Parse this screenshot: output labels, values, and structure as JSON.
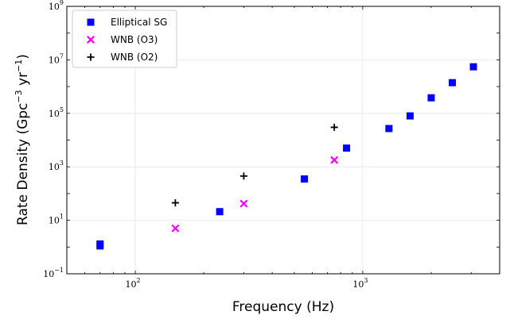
{
  "chart_data": {
    "type": "scatter",
    "title": "",
    "xlabel": "Frequency (Hz)",
    "ylabel": {
      "prefix": "Rate Density (Gpc",
      "exp1": "−3",
      "middle": " yr",
      "exp2": "−1",
      "suffix": ")"
    },
    "xscale": "log",
    "yscale": "log",
    "xlim": [
      50,
      4000
    ],
    "ylim": [
      0.1,
      1000000000
    ],
    "grid": true,
    "legend_position": "top-left",
    "x_ticks": [
      {
        "value": 100,
        "base": "10",
        "exp": "2"
      },
      {
        "value": 1000,
        "base": "10",
        "exp": "3"
      }
    ],
    "y_ticks": [
      {
        "value": 0.1,
        "base": "10",
        "exp": "−1"
      },
      {
        "value": 10,
        "base": "10",
        "exp": "1"
      },
      {
        "value": 1000,
        "base": "10",
        "exp": "3"
      },
      {
        "value": 100000,
        "base": "10",
        "exp": "5"
      },
      {
        "value": 10000000,
        "base": "10",
        "exp": "7"
      },
      {
        "value": 1000000000,
        "base": "10",
        "exp": "9"
      }
    ],
    "series": [
      {
        "name": "Elliptical SG",
        "marker": "square",
        "color": "#0000ff",
        "points": [
          {
            "x": 70,
            "y": 1.1
          },
          {
            "x": 70,
            "y": 1.3
          },
          {
            "x": 235,
            "y": 21
          },
          {
            "x": 554,
            "y": 350
          },
          {
            "x": 849,
            "y": 5000
          },
          {
            "x": 1304,
            "y": 27000
          },
          {
            "x": 1615,
            "y": 80000
          },
          {
            "x": 2000,
            "y": 380000
          },
          {
            "x": 2477,
            "y": 1400000
          },
          {
            "x": 3067,
            "y": 5500000
          }
        ]
      },
      {
        "name": "WNB (O3)",
        "marker": "x-filled",
        "color": "#ff00ff",
        "points": [
          {
            "x": 150,
            "y": 5
          },
          {
            "x": 300,
            "y": 42
          },
          {
            "x": 750,
            "y": 1800
          }
        ]
      },
      {
        "name": "WNB (O2)",
        "marker": "plus",
        "color": "#000000",
        "points": [
          {
            "x": 150,
            "y": 45
          },
          {
            "x": 300,
            "y": 450
          },
          {
            "x": 750,
            "y": 30000
          }
        ]
      }
    ]
  }
}
